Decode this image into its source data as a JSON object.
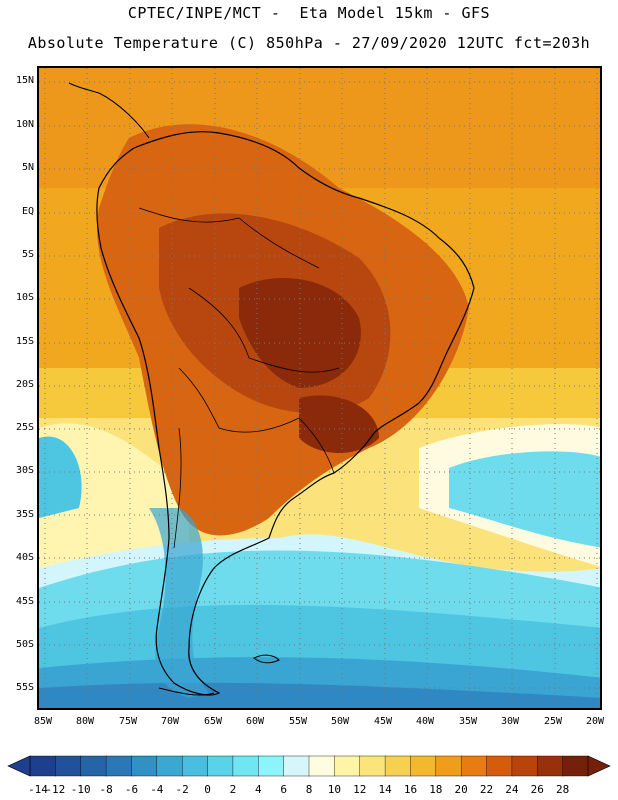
{
  "header": {
    "title_line1": "CPTEC/INPE/MCT -  Eta Model 15km - GFS",
    "title_line2": "Absolute Temperature (C) 850hPa - 27/09/2020 12UTC fct=203h"
  },
  "map": {
    "lat_labels": [
      "15N",
      "10N",
      "5N",
      "EQ",
      "5S",
      "10S",
      "15S",
      "20S",
      "25S",
      "30S",
      "35S",
      "40S",
      "45S",
      "50S",
      "55S"
    ],
    "lon_labels": [
      "85W",
      "80W",
      "75W",
      "70W",
      "65W",
      "60W",
      "55W",
      "50W",
      "45W",
      "40W",
      "35W",
      "30W",
      "25W",
      "20W"
    ],
    "colors": {
      "very_hot": "#8a2a0a",
      "hot": "#b8470f",
      "warm_orange": "#d76512",
      "orange": "#e98a18",
      "amber": "#f2a81e",
      "gold": "#f6c83c",
      "yellow": "#fbe27a",
      "pale_yellow": "#fff4b0",
      "cream": "#fffbe0",
      "pale_cyan": "#d2f6fb",
      "cyan": "#6fdcee",
      "light_blue": "#4ec6e2",
      "blue": "#3aa5d2",
      "mid_blue": "#2f88c2",
      "deep_blue": "#256ab0",
      "land_border": "#000000",
      "grid": "#777777"
    }
  },
  "colorbar": {
    "ticks": [
      "-14",
      "-12",
      "-10",
      "-8",
      "-6",
      "-4",
      "-2",
      "0",
      "2",
      "4",
      "6",
      "8",
      "10",
      "12",
      "14",
      "16",
      "18",
      "20",
      "22",
      "24",
      "26",
      "28"
    ],
    "colors": [
      "#1e3f8e",
      "#22519b",
      "#2664a8",
      "#2c78b6",
      "#3390c4",
      "#3ca8d2",
      "#49bee0",
      "#5ad2ea",
      "#6fe6f2",
      "#8cf4fa",
      "#d6f6fa",
      "#fffce0",
      "#fff3a6",
      "#fbe47a",
      "#f6d050",
      "#f2b82e",
      "#ee9d1c",
      "#e67c12",
      "#d45c0e",
      "#b8430c",
      "#98300a",
      "#74200a"
    ]
  }
}
